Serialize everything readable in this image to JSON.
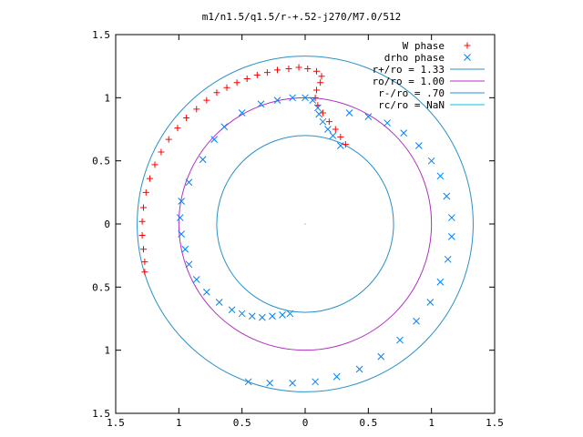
{
  "chart_data": {
    "type": "scatter",
    "title": "m1/n1.5/q1.5/r-+.52-j270/M7.0/512",
    "xlim": [
      -1.5,
      1.5
    ],
    "ylim": [
      -1.5,
      1.5
    ],
    "x_tick_values": [
      -1.5,
      -1,
      -0.5,
      0,
      0.5,
      1,
      1.5
    ],
    "y_tick_values": [
      -1.5,
      -1,
      -0.5,
      0,
      0.5,
      1,
      1.5
    ],
    "x_tick_labels": [
      "1.5",
      "1",
      "0.5",
      "0",
      "0.5",
      "1",
      "1.5"
    ],
    "y_tick_labels": [
      "1.5",
      "1",
      "0.5",
      "0",
      "0.5",
      "1",
      "1.5"
    ],
    "grid": false,
    "legend_position": "top-right",
    "series": [
      {
        "name": "W phase",
        "kind": "points",
        "marker": "+",
        "color": "#ff0000",
        "points": [
          [
            0.32,
            0.63
          ],
          [
            0.28,
            0.69
          ],
          [
            0.24,
            0.75
          ],
          [
            0.19,
            0.81
          ],
          [
            0.14,
            0.88
          ],
          [
            0.1,
            0.94
          ],
          [
            0.08,
            1.0
          ],
          [
            0.09,
            1.06
          ],
          [
            0.12,
            1.12
          ],
          [
            0.13,
            1.17
          ],
          [
            0.09,
            1.21
          ],
          [
            0.02,
            1.23
          ],
          [
            -0.05,
            1.24
          ],
          [
            -0.13,
            1.23
          ],
          [
            -0.22,
            1.22
          ],
          [
            -0.3,
            1.2
          ],
          [
            -0.38,
            1.18
          ],
          [
            -0.46,
            1.15
          ],
          [
            -0.54,
            1.12
          ],
          [
            -0.62,
            1.08
          ],
          [
            -0.7,
            1.04
          ],
          [
            -0.78,
            0.98
          ],
          [
            -0.86,
            0.91
          ],
          [
            -0.94,
            0.84
          ],
          [
            -1.01,
            0.76
          ],
          [
            -1.08,
            0.67
          ],
          [
            -1.14,
            0.57
          ],
          [
            -1.19,
            0.47
          ],
          [
            -1.23,
            0.36
          ],
          [
            -1.26,
            0.25
          ],
          [
            -1.28,
            0.13
          ],
          [
            -1.29,
            0.02
          ],
          [
            -1.29,
            -0.09
          ],
          [
            -1.28,
            -0.2
          ],
          [
            -1.27,
            -0.3
          ],
          [
            -1.27,
            -0.38
          ]
        ]
      },
      {
        "name": "drho phase",
        "kind": "points",
        "marker": "x",
        "color": "#0080ff",
        "points": [
          [
            0.28,
            0.62
          ],
          [
            0.22,
            0.7
          ],
          [
            0.18,
            0.75
          ],
          [
            0.14,
            0.81
          ],
          [
            0.11,
            0.87
          ],
          [
            0.1,
            0.92
          ],
          [
            0.06,
            0.98
          ],
          [
            0.0,
            1.0
          ],
          [
            -0.1,
            1.0
          ],
          [
            -0.22,
            0.98
          ],
          [
            -0.35,
            0.95
          ],
          [
            -0.5,
            0.88
          ],
          [
            -0.64,
            0.77
          ],
          [
            -0.72,
            0.67
          ],
          [
            -0.81,
            0.51
          ],
          [
            -0.92,
            0.33
          ],
          [
            -0.98,
            0.18
          ],
          [
            -0.99,
            0.05
          ],
          [
            -0.98,
            -0.08
          ],
          [
            -0.95,
            -0.2
          ],
          [
            -0.92,
            -0.32
          ],
          [
            -0.86,
            -0.44
          ],
          [
            -0.78,
            -0.54
          ],
          [
            -0.68,
            -0.62
          ],
          [
            -0.58,
            -0.68
          ],
          [
            -0.5,
            -0.71
          ],
          [
            -0.42,
            -0.73
          ],
          [
            -0.34,
            -0.74
          ],
          [
            -0.26,
            -0.73
          ],
          [
            -0.18,
            -0.72
          ],
          [
            -0.12,
            -0.71
          ],
          [
            0.35,
            0.88
          ],
          [
            0.5,
            0.85
          ],
          [
            0.65,
            0.8
          ],
          [
            0.78,
            0.72
          ],
          [
            0.9,
            0.62
          ],
          [
            1.0,
            0.5
          ],
          [
            1.07,
            0.38
          ],
          [
            1.12,
            0.22
          ],
          [
            1.16,
            0.05
          ],
          [
            1.16,
            -0.1
          ],
          [
            1.13,
            -0.28
          ],
          [
            1.07,
            -0.46
          ],
          [
            0.99,
            -0.62
          ],
          [
            0.88,
            -0.77
          ],
          [
            0.75,
            -0.92
          ],
          [
            0.6,
            -1.05
          ],
          [
            0.43,
            -1.15
          ],
          [
            0.25,
            -1.21
          ],
          [
            0.08,
            -1.25
          ],
          [
            -0.1,
            -1.26
          ],
          [
            -0.28,
            -1.26
          ],
          [
            -0.45,
            -1.25
          ]
        ]
      },
      {
        "name": "r+/ro = 1.33",
        "kind": "circle",
        "radius": 1.33,
        "color": "#2a90c8"
      },
      {
        "name": "ro/ro = 1.00",
        "kind": "circle",
        "radius": 1.0,
        "color": "#b030c0"
      },
      {
        "name": "r-/ro = .70",
        "kind": "circle",
        "radius": 0.7,
        "color": "#2a90c8"
      },
      {
        "name": "rc/ro = NaN",
        "kind": "circle",
        "radius": null,
        "color": "#00c8d8"
      }
    ]
  }
}
